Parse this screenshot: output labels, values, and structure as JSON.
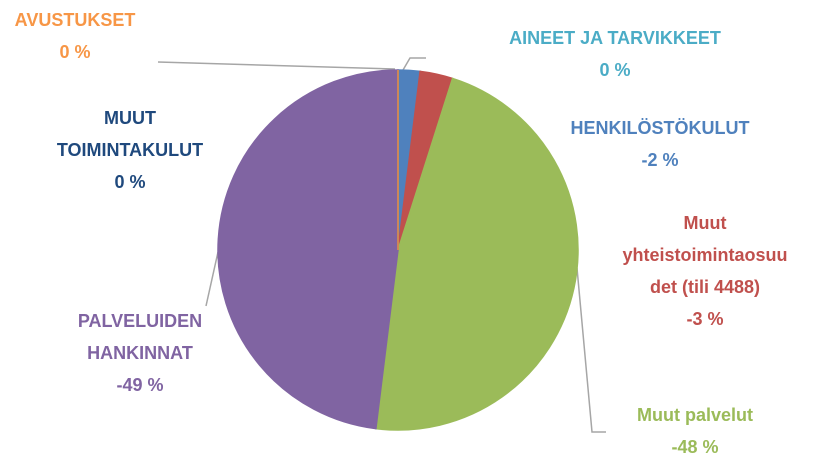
{
  "chart_data": {
    "type": "pie",
    "categories": [
      "AINEET JA TARVIKKEET",
      "HENKILÖSTÖKULUT",
      "Muut\nyhteistoimintaosuu\ndet (tili 4488)",
      "Muut palvelut",
      "PALVELUIDEN\nHANKINNAT",
      "MUUT\nTOIMINTAKULUT",
      "AVUSTUKSET"
    ],
    "values": [
      0,
      -2,
      -3,
      -48,
      -49,
      0,
      0
    ],
    "value_labels": [
      "0 %",
      "-2 %",
      "-3 %",
      "-48 %",
      "-49 %",
      "0 %",
      "0 %"
    ],
    "colors": [
      "#4bacc6",
      "#4f81bd",
      "#c0504d",
      "#9bbb59",
      "#8064a2",
      "#1f497d",
      "#f79646"
    ]
  }
}
